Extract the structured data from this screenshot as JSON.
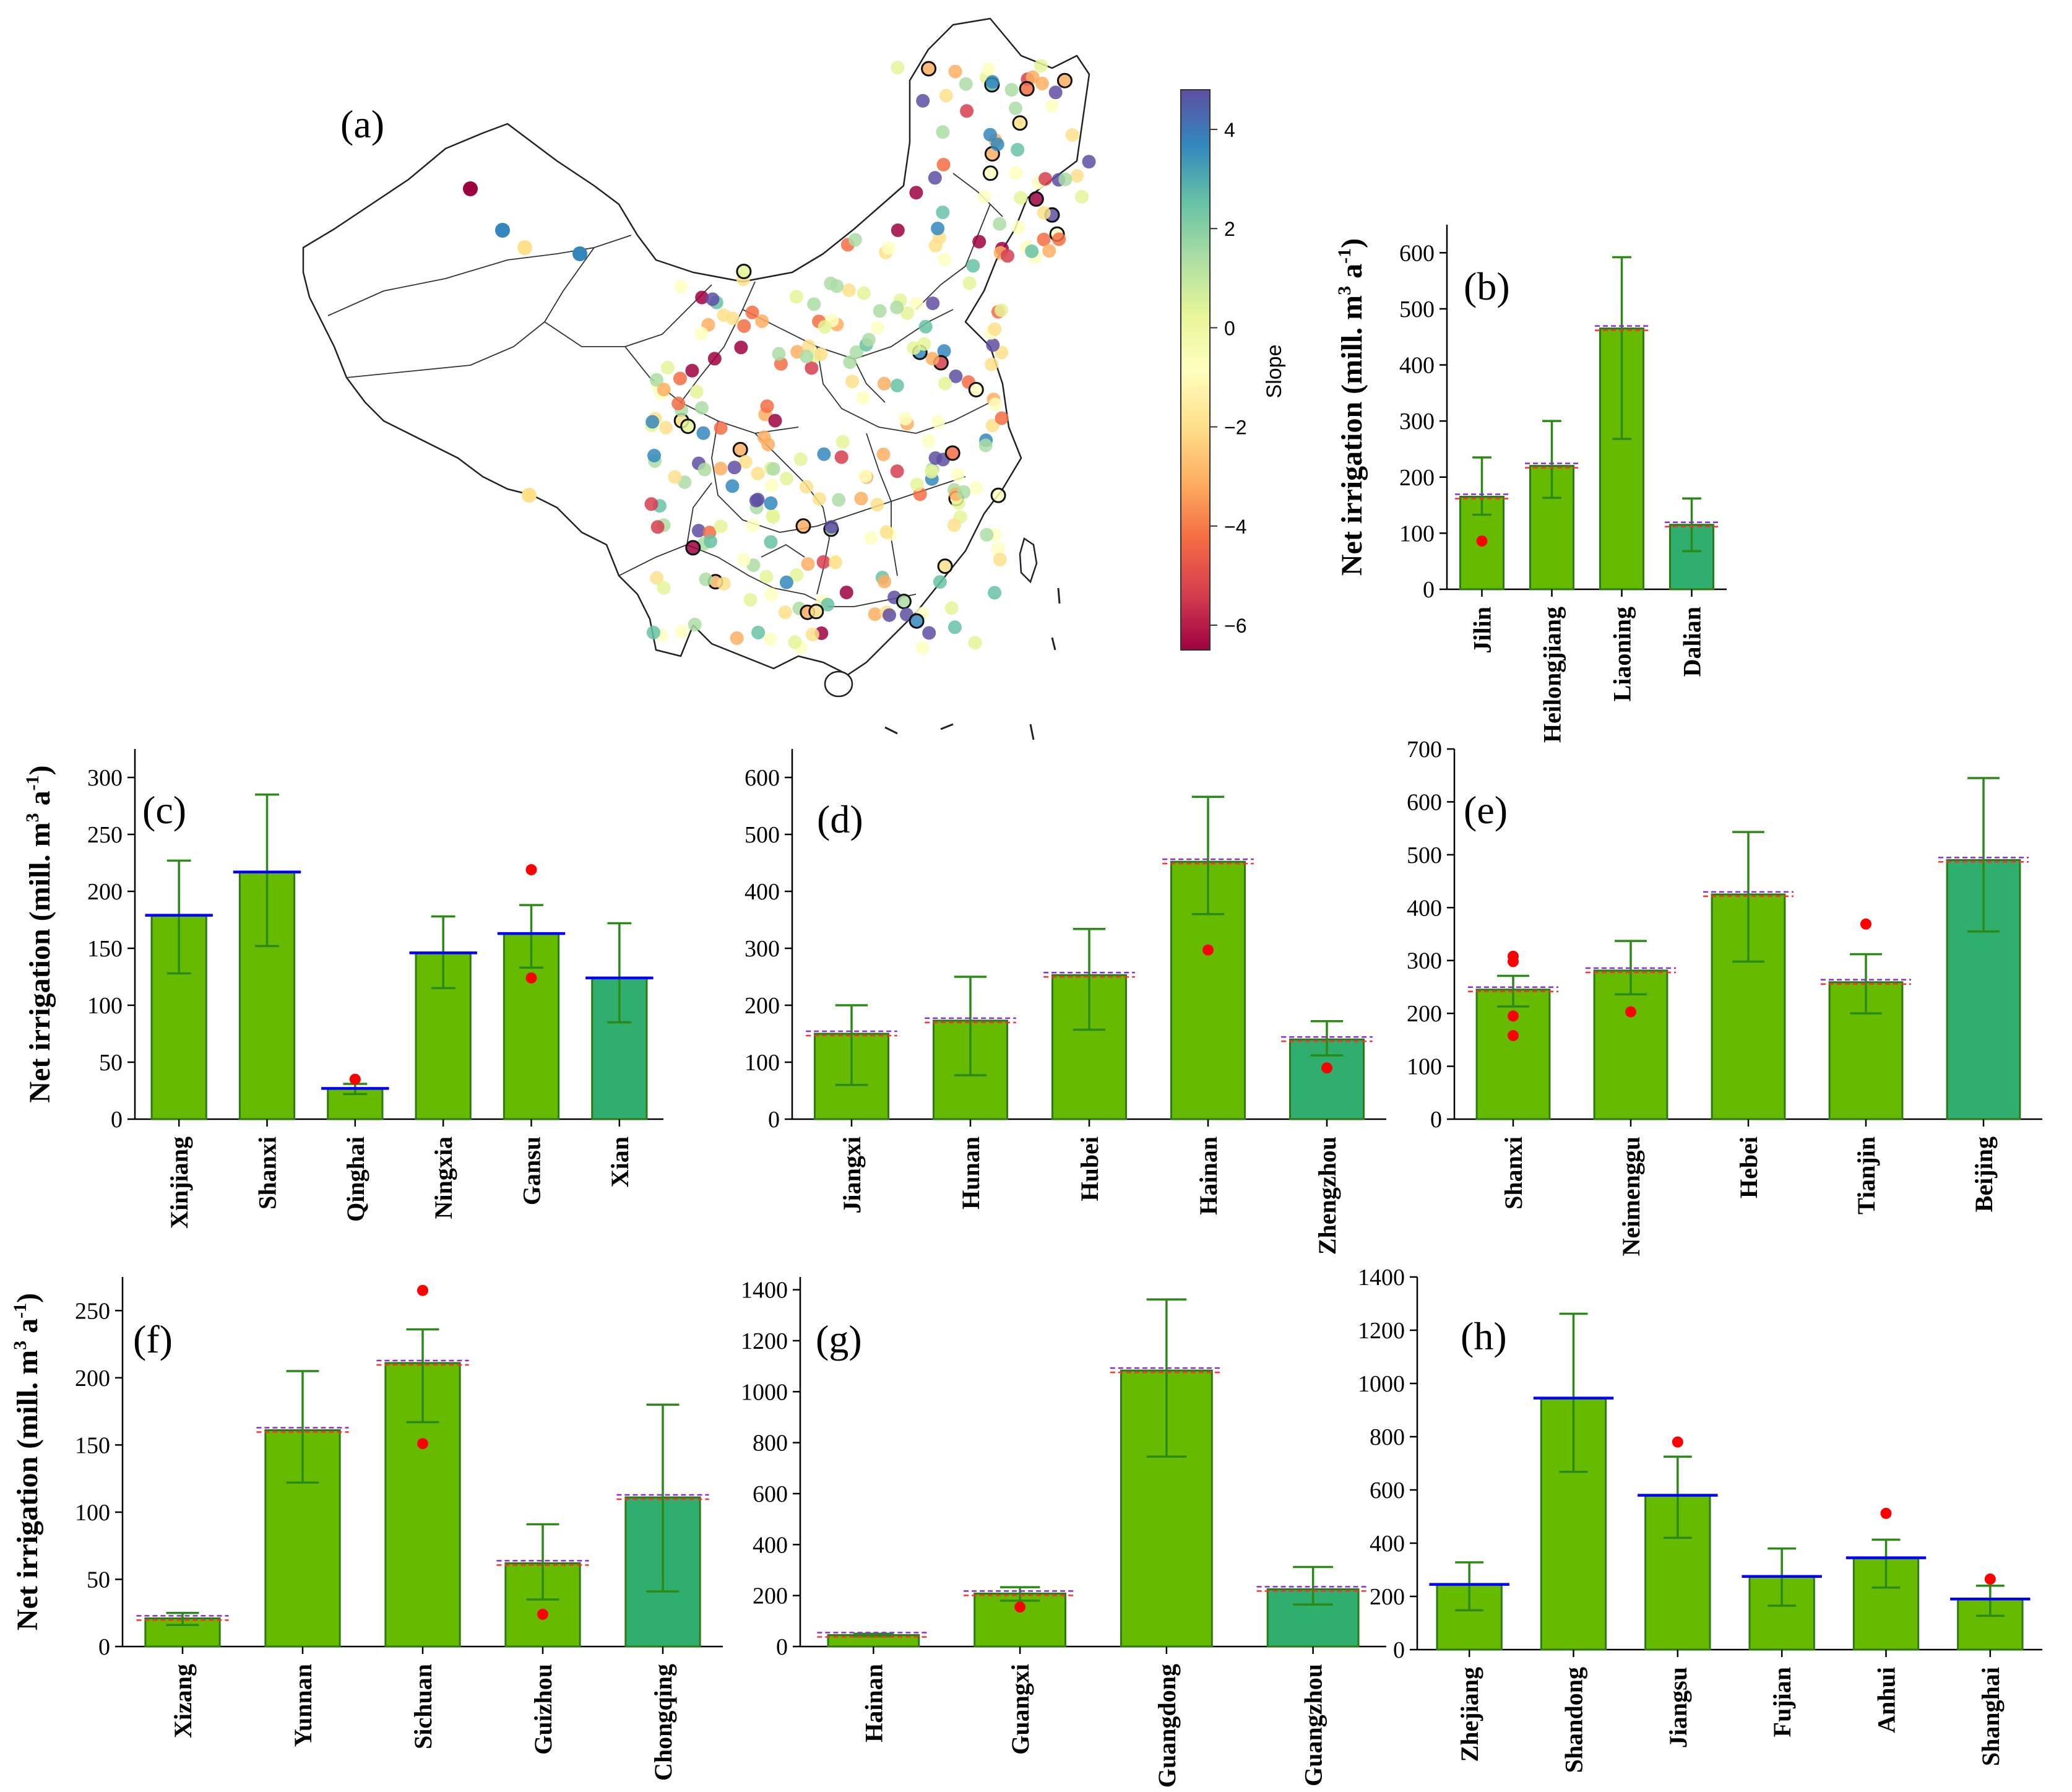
{
  "figure": {
    "map_panel": {
      "label": "(a)",
      "colorbar": {
        "label": "Slope",
        "ticks": [
          4,
          2,
          0,
          -2,
          -4,
          -6
        ],
        "tick_labels": [
          "4",
          "2",
          "0",
          "−2",
          "−4",
          "−6"
        ],
        "range": [
          -6.5,
          4.8
        ],
        "colormap": "Spectral",
        "colors": [
          "#9e0142",
          "#d53e4f",
          "#f46d43",
          "#fdae61",
          "#fee08b",
          "#ffffbf",
          "#e6f598",
          "#abdda4",
          "#66c2a5",
          "#3288bd",
          "#5e4fa2"
        ]
      }
    },
    "colors": {
      "bar_green": "#66bb00",
      "bar_teal": "#2fae6e",
      "bar_edge": "#2b7a13",
      "errorbar": "#2b8a15",
      "point": "#ff0000",
      "mean_blue": "#0000ff",
      "mean_red": "#ff3030",
      "mean_purple": "#8a2be2"
    }
  },
  "chart_data": [
    {
      "panel": "(b)",
      "type": "bar",
      "ylabel": "Net irrigation (mill. m3 a-1)",
      "ylim": [
        0,
        650
      ],
      "yticks": [
        0,
        100,
        200,
        300,
        400,
        500,
        600
      ],
      "categories": [
        "Jilin",
        "Heilongjiang",
        "Liaoning",
        "Dalian"
      ],
      "values": [
        165,
        220,
        465,
        115
      ],
      "err_low": [
        133,
        163,
        268,
        68
      ],
      "err_high": [
        235,
        300,
        592,
        162
      ],
      "bar_types": [
        "green",
        "green",
        "green",
        "teal"
      ],
      "points": [
        [
          86
        ],
        [],
        [],
        []
      ],
      "mean_style": "purple_red"
    },
    {
      "panel": "(c)",
      "type": "bar",
      "ylabel": "Net irrigation (mill. m3 a-1)",
      "ylim": [
        0,
        325
      ],
      "yticks": [
        0,
        50,
        100,
        150,
        200,
        250,
        300
      ],
      "categories": [
        "Xinjiang",
        "Shanxi",
        "Qinghai",
        "Ningxia",
        "Gansu",
        "Xian"
      ],
      "values": [
        179,
        217,
        27,
        146,
        163,
        124
      ],
      "err_low": [
        128,
        152,
        22,
        115,
        133,
        85
      ],
      "err_high": [
        227,
        285,
        31,
        178,
        188,
        172
      ],
      "bar_types": [
        "green",
        "green",
        "green",
        "green",
        "green",
        "teal"
      ],
      "points": [
        [],
        [],
        [
          35
        ],
        [],
        [
          219,
          124
        ],
        []
      ],
      "mean_style": "blue"
    },
    {
      "panel": "(d)",
      "type": "bar",
      "ylabel": "",
      "ylim": [
        0,
        650
      ],
      "yticks": [
        0,
        100,
        200,
        300,
        400,
        500,
        600
      ],
      "categories": [
        "Jiangxi",
        "Hunan",
        "Hubei",
        "Hainan",
        "Zhengzhou"
      ],
      "values": [
        150,
        173,
        253,
        452,
        140
      ],
      "err_low": [
        60,
        77,
        157,
        360,
        112
      ],
      "err_high": [
        200,
        250,
        334,
        566,
        172
      ],
      "bar_types": [
        "green",
        "green",
        "green",
        "green",
        "teal"
      ],
      "points": [
        [],
        [],
        [],
        [
          297
        ],
        [
          90
        ]
      ],
      "mean_style": "purple_red"
    },
    {
      "panel": "(e)",
      "type": "bar",
      "ylabel": "",
      "ylim": [
        0,
        700
      ],
      "yticks": [
        0,
        100,
        200,
        300,
        400,
        500,
        600,
        700
      ],
      "categories": [
        "Shanxi",
        "Neimenggu",
        "Hebei",
        "Tianjin",
        "Beijing"
      ],
      "values": [
        245,
        281,
        425,
        259,
        490
      ],
      "err_low": [
        213,
        236,
        298,
        200,
        355
      ],
      "err_high": [
        271,
        337,
        543,
        312,
        645
      ],
      "bar_types": [
        "green",
        "green",
        "green",
        "green",
        "teal"
      ],
      "points": [
        [
          308,
          298,
          195,
          158
        ],
        [
          203
        ],
        [],
        [
          369
        ],
        []
      ],
      "mean_style": "purple_red"
    },
    {
      "panel": "(f)",
      "type": "bar",
      "ylabel": "Net irrigation (mill. m3 a-1)",
      "ylim": [
        0,
        275
      ],
      "yticks": [
        0,
        50,
        100,
        150,
        200,
        250
      ],
      "categories": [
        "Xizang",
        "Yunnan",
        "Sichuan",
        "Guizhou",
        "Chongqing"
      ],
      "values": [
        21,
        161,
        211,
        62,
        111
      ],
      "err_low": [
        16,
        122,
        167,
        35,
        41
      ],
      "err_high": [
        25,
        205,
        236,
        91,
        180
      ],
      "bar_types": [
        "green",
        "green",
        "green",
        "green",
        "teal"
      ],
      "points": [
        [],
        [],
        [
          265,
          151
        ],
        [
          24
        ],
        []
      ],
      "mean_style": "purple_red"
    },
    {
      "panel": "(g)",
      "type": "bar",
      "ylabel": "",
      "ylim": [
        0,
        1450
      ],
      "yticks": [
        0,
        200,
        400,
        600,
        800,
        1000,
        1200,
        1400
      ],
      "categories": [
        "Hainan",
        "Guangxi",
        "Guangdong",
        "Guangzhou"
      ],
      "values": [
        45,
        208,
        1083,
        225
      ],
      "err_low": [
        40,
        180,
        745,
        165
      ],
      "err_high": [
        50,
        233,
        1362,
        312
      ],
      "bar_types": [
        "green",
        "green",
        "green",
        "teal"
      ],
      "points": [
        [],
        [
          155
        ],
        [],
        []
      ],
      "mean_style": "purple_red"
    },
    {
      "panel": "(h)",
      "type": "bar",
      "ylabel": "",
      "ylim": [
        0,
        1400
      ],
      "yticks": [
        0,
        200,
        400,
        600,
        800,
        1000,
        1200,
        1400
      ],
      "categories": [
        "Zhejiang",
        "Shandong",
        "Jiangsu",
        "Fujian",
        "Anhui",
        "Shanghai"
      ],
      "values": [
        245,
        945,
        580,
        275,
        345,
        190
      ],
      "err_low": [
        148,
        668,
        420,
        165,
        233,
        127
      ],
      "err_high": [
        328,
        1262,
        725,
        380,
        413,
        240
      ],
      "bar_types": [
        "green",
        "green",
        "green",
        "green",
        "green",
        "green"
      ],
      "points": [
        [],
        [],
        [
          780
        ],
        [],
        [
          512
        ],
        [
          265
        ]
      ],
      "mean_style": "blue"
    }
  ]
}
